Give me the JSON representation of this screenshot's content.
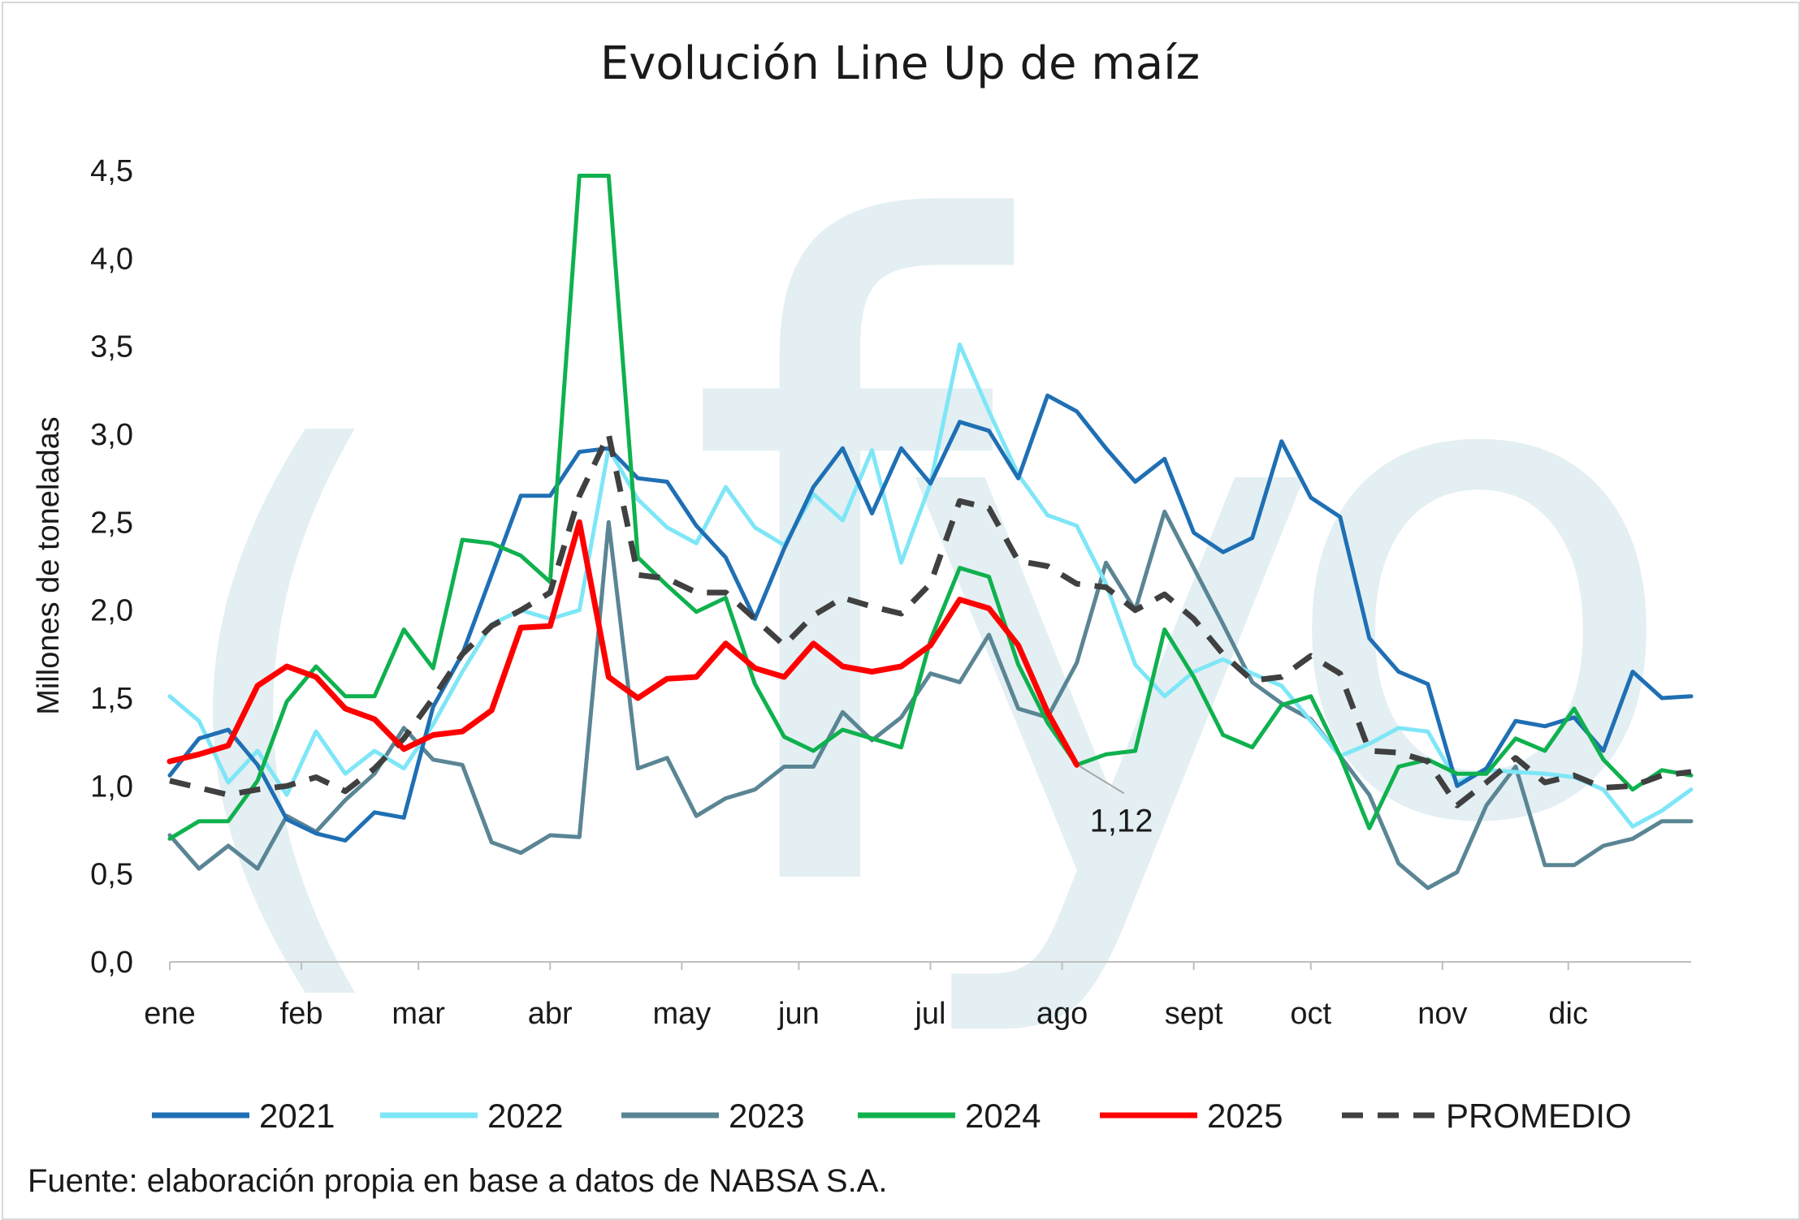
{
  "chart_data": {
    "type": "line",
    "title": "Evolución Line Up de maíz",
    "ylabel": "Millones de toneladas",
    "xlabel": "",
    "ylim": [
      0,
      4.5
    ],
    "yticks": [
      "0,0",
      "0,5",
      "1,0",
      "1,5",
      "2,0",
      "2,5",
      "3,0",
      "3,5",
      "4,0",
      "4,5"
    ],
    "x_start": 1,
    "x_end": 53,
    "month_labels": [
      {
        "label": "ene",
        "week": 1
      },
      {
        "label": "feb",
        "week": 5.5
      },
      {
        "label": "mar",
        "week": 9.5
      },
      {
        "label": "abr",
        "week": 14
      },
      {
        "label": "may",
        "week": 18.5
      },
      {
        "label": "jun",
        "week": 22.5
      },
      {
        "label": "jul",
        "week": 27
      },
      {
        "label": "ago",
        "week": 31.5
      },
      {
        "label": "sept",
        "week": 36
      },
      {
        "label": "oct",
        "week": 40
      },
      {
        "label": "nov",
        "week": 44.5
      },
      {
        "label": "dic",
        "week": 48.8
      }
    ],
    "grid": false,
    "legend_position": "bottom",
    "series": [
      {
        "name": "2021",
        "color": "#1f6fb4",
        "style": "solid",
        "start_week": 1,
        "values": [
          1.06,
          1.27,
          1.32,
          1.12,
          0.81,
          0.73,
          0.69,
          0.85,
          0.82,
          1.45,
          1.75,
          2.2,
          2.65,
          2.65,
          2.9,
          2.92,
          2.75,
          2.73,
          2.48,
          2.3,
          1.95,
          2.35,
          2.7,
          2.92,
          2.55,
          2.92,
          2.72,
          3.07,
          3.02,
          2.75,
          3.22,
          3.13,
          2.92,
          2.73,
          2.86,
          2.44,
          2.33,
          2.41,
          2.96,
          2.64,
          2.53,
          1.84,
          1.65,
          1.58,
          1.0,
          1.1,
          1.37,
          1.34,
          1.39,
          1.2,
          1.65,
          1.5,
          1.51
        ]
      },
      {
        "name": "2022",
        "color": "#7ee6f7",
        "style": "solid",
        "start_week": 1,
        "values": [
          1.51,
          1.37,
          1.02,
          1.2,
          0.95,
          1.31,
          1.07,
          1.2,
          1.1,
          1.35,
          1.65,
          1.92,
          2.0,
          1.95,
          2.0,
          2.92,
          2.63,
          2.47,
          2.38,
          2.7,
          2.47,
          2.37,
          2.66,
          2.51,
          2.91,
          2.27,
          2.72,
          3.51,
          3.13,
          2.77,
          2.54,
          2.48,
          2.15,
          1.69,
          1.51,
          1.65,
          1.72,
          1.64,
          1.57,
          1.37,
          1.17,
          1.24,
          1.33,
          1.31,
          1.02,
          1.09,
          1.08,
          1.07,
          1.05,
          0.98,
          0.77,
          0.86,
          0.98
        ]
      },
      {
        "name": "2023",
        "color": "#5a8594",
        "style": "solid",
        "start_week": 1,
        "values": [
          0.72,
          0.53,
          0.66,
          0.53,
          0.83,
          0.74,
          0.92,
          1.07,
          1.33,
          1.15,
          1.12,
          0.68,
          0.62,
          0.72,
          0.71,
          2.5,
          1.1,
          1.16,
          0.83,
          0.93,
          0.98,
          1.11,
          1.11,
          1.42,
          1.26,
          1.39,
          1.64,
          1.59,
          1.86,
          1.44,
          1.39,
          1.7,
          2.27,
          2.0,
          2.56,
          2.24,
          1.92,
          1.59,
          1.47,
          1.38,
          1.17,
          0.95,
          0.56,
          0.42,
          0.51,
          0.89,
          1.11,
          0.55,
          0.55,
          0.66,
          0.7,
          0.8,
          0.8
        ]
      },
      {
        "name": "2024",
        "color": "#0fb14e",
        "style": "solid",
        "start_week": 1,
        "values": [
          0.7,
          0.8,
          0.8,
          1.03,
          1.48,
          1.68,
          1.51,
          1.51,
          1.89,
          1.67,
          2.4,
          2.38,
          2.31,
          2.16,
          4.47,
          4.47,
          2.3,
          2.14,
          1.99,
          2.07,
          1.58,
          1.28,
          1.2,
          1.32,
          1.27,
          1.22,
          1.83,
          2.24,
          2.19,
          1.69,
          1.36,
          1.12,
          1.18,
          1.2,
          1.89,
          1.62,
          1.29,
          1.22,
          1.46,
          1.51,
          1.17,
          0.76,
          1.11,
          1.15,
          1.07,
          1.07,
          1.27,
          1.2,
          1.44,
          1.15,
          0.98,
          1.09,
          1.06
        ]
      },
      {
        "name": "2025",
        "color": "#ff0000",
        "style": "solid",
        "start_week": 1,
        "values": [
          1.14,
          1.18,
          1.23,
          1.57,
          1.68,
          1.62,
          1.44,
          1.38,
          1.21,
          1.29,
          1.31,
          1.43,
          1.9,
          1.91,
          2.5,
          1.62,
          1.5,
          1.61,
          1.62,
          1.81,
          1.67,
          1.62,
          1.81,
          1.68,
          1.65,
          1.68,
          1.8,
          2.06,
          2.01,
          1.8,
          1.42,
          1.12
        ]
      },
      {
        "name": "PROMEDIO",
        "color": "#404040",
        "style": "dashed",
        "start_week": 1,
        "values": [
          1.03,
          0.99,
          0.95,
          0.98,
          1.0,
          1.05,
          0.97,
          1.1,
          1.27,
          1.5,
          1.75,
          1.91,
          2.0,
          2.1,
          2.65,
          3.0,
          2.2,
          2.18,
          2.1,
          2.1,
          1.95,
          1.8,
          1.97,
          2.07,
          2.02,
          1.98,
          2.15,
          2.62,
          2.58,
          2.28,
          2.25,
          2.15,
          2.13,
          2.0,
          2.09,
          1.95,
          1.75,
          1.6,
          1.62,
          1.74,
          1.64,
          1.2,
          1.19,
          1.14,
          0.89,
          1.02,
          1.16,
          1.02,
          1.06,
          0.99,
          1.0,
          1.06,
          1.08
        ]
      }
    ],
    "annotations": [
      {
        "text": "1,12",
        "series": "2025",
        "week": 32,
        "value": 1.12
      }
    ],
    "source": "Fuente: elaboración propia en base a datos de NABSA S.A.",
    "watermark": "(fyo"
  }
}
